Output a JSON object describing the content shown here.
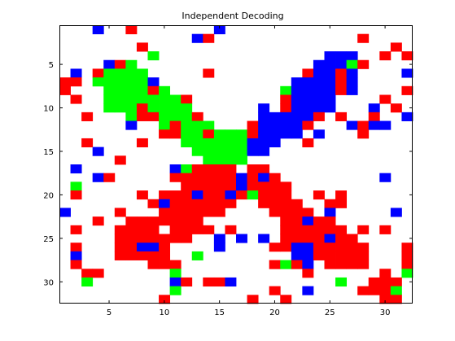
{
  "chart_data": {
    "type": "heatmap",
    "title": "Independent Decoding",
    "xlabel": "",
    "ylabel": "",
    "n_cols": 32,
    "n_rows": 32,
    "x_ticks": [
      5,
      10,
      15,
      20,
      25,
      30
    ],
    "y_ticks": [
      5,
      10,
      15,
      20,
      25,
      30
    ],
    "grid": false,
    "palette": {
      "W": "#ffffff",
      "R": "#ff0000",
      "G": "#00ff00",
      "B": "#0000ff"
    },
    "cells": [
      "WWWBWWRWWWWWWWBWWWWWWWWWWWWWWWWW",
      "WWWWWWWWWWWWBRWWWWWWWWWWWWWRWWWW",
      "WWWWWWWRWWWWWWWWWWWWWWWWWWWWWWRW",
      "WWWWWWWWGWWWWWWWWWWWWWWWBBBWWRWR",
      "WWWWBRGWWWWWWWWWWWWWWWWBBBGRWWWW",
      "WBWRGGGGWWWWWRWWWWWWWWRBBRBWWWWB",
      "RRWGGGGGBWWWWWWWWWWWWBBBBRBWWWWW",
      "RWWWGGGGRGWWWWWWWWWWGBBBBRBWWWWR",
      "WRWWGGGGGGGRWWWWWWWWRBBBBWWWWRWW",
      "WWWWGGGRGGGGWWWWWWBWRBBBBWWWBWRW",
      "WWRWWWGRRGGGRWWWWWBBBBBRWRWWRWWB",
      "WWWWWWBWWGRGGGWWWRBBBBRWWWBRBBWW",
      "WWWWWWWWWRRGGRGGGRBBBBWBWWWRWWWW",
      "WWRWWWWRWWWGGGGGGBBBWWRWWWWWWWWW",
      "WWWBWWWWWWWWGGGGGBBWWWWWWWWWWWWW",
      "WWWWWRWWWWWWWGGGGWWWWWWWWWWWWWWW",
      "WBWWWWWWWWBGRRRRWRRWWWWWWWWWWWWW",
      "WWWBRWWWWWRRRRRRBRBRWWWWWWWWWBWW",
      "WGWWWWWWWWWRRRRRBRRRRWWWWWWWWWWW",
      "WRWWWWWRWRRRBRRBRGRRRWWRWRWWWWWW",
      "WWWWWWWWRBRRRRRRWWRRRRWWRRWWWWWW",
      "BWWWWRWWWRRRRRRWWWWRRRRWBWWWWWBW",
      "WWWRWWRRRRRRRWWWWWWWRRBRRWWWWWWW",
      "WRWWWRRRRWRRRRWRWWWWRRRRRRWRWRWW",
      "WWWWWRRRRRRRWWBWBWBWRRRRBRRWWWWW",
      "WRWWWRRBBRWWWWBWWWWRRBBRRRRRWWWR",
      "WBWWWRRRRRWWGWWWWWWWWBBRRRRRWWWR",
      "WRWWWWWWRRRWWWWWWWWRGRBWRRRRWWWR",
      "WWRRWWWWWWGWWWWWWWWWWWRWWWWWWRWG",
      "WWGWWWWWWWBRWRRBWWWWWWWWWGWWRRRW",
      "WWWWWWWWWWGWWWWWWWWRWWBWWWWRRRGW",
      "WWWWWWWWWRWWWWWWWRWWRWWWWWWWWRRW"
    ]
  }
}
